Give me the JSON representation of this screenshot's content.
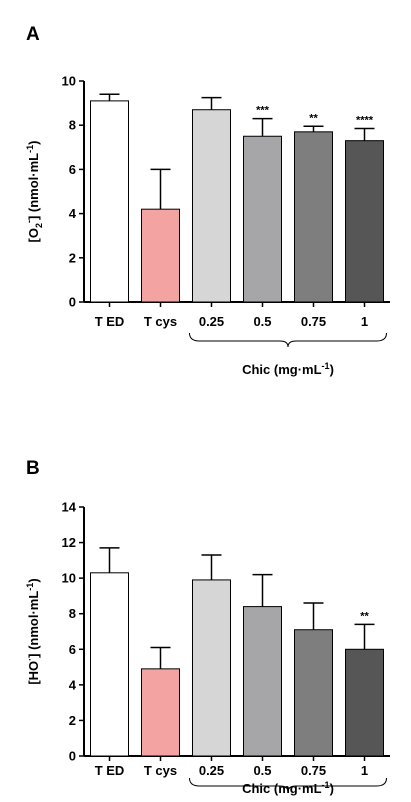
{
  "figure": {
    "colors": {
      "TED": "#ffffff",
      "Tcys": "#f4a3a3",
      "c025": "#d6d6d6",
      "c05": "#a6a6a8",
      "c075": "#7e7e7e",
      "c1": "#565656"
    }
  },
  "chart_data": [
    {
      "type": "bar",
      "panel_label": "A",
      "ylabel_parts": {
        "pre": "[O",
        "sub": "2",
        "sup": "-",
        "post": "] (nmol·mL",
        "unit_sup": "-1",
        "close": ")"
      },
      "categories": [
        "T ED",
        "T cys",
        "0.25",
        "0.5",
        "0.75",
        "1"
      ],
      "values": [
        9.1,
        4.2,
        8.7,
        7.5,
        7.7,
        7.3
      ],
      "errors": [
        0.3,
        1.8,
        0.55,
        0.8,
        0.25,
        0.55
      ],
      "significance": [
        "",
        "",
        "",
        "***",
        "**",
        "****"
      ],
      "ylim": [
        0,
        10
      ],
      "yticks": [
        "0",
        "2",
        "4",
        "6",
        "8",
        "10"
      ],
      "group_label": "Chic (mg·mL",
      "group_label_sup": "-1",
      "group_label_close": ")"
    },
    {
      "type": "bar",
      "panel_label": "B",
      "ylabel_parts": {
        "pre": "[HO",
        "sub": "",
        "sup": "·",
        "post": "] (nmol·mL",
        "unit_sup": "-1",
        "close": ")"
      },
      "categories": [
        "T ED",
        "T cys",
        "0.25",
        "0.5",
        "0.75",
        "1"
      ],
      "values": [
        10.3,
        4.9,
        9.9,
        8.4,
        7.1,
        6.0
      ],
      "errors": [
        1.4,
        1.2,
        1.4,
        1.8,
        1.5,
        1.4
      ],
      "significance": [
        "",
        "",
        "",
        "",
        "",
        "**"
      ],
      "ylim": [
        0,
        14
      ],
      "yticks": [
        "0",
        "2",
        "4",
        "6",
        "8",
        "10",
        "12",
        "14"
      ],
      "group_label": "Chic (mg·mL",
      "group_label_sup": "-1",
      "group_label_close": ")"
    }
  ]
}
